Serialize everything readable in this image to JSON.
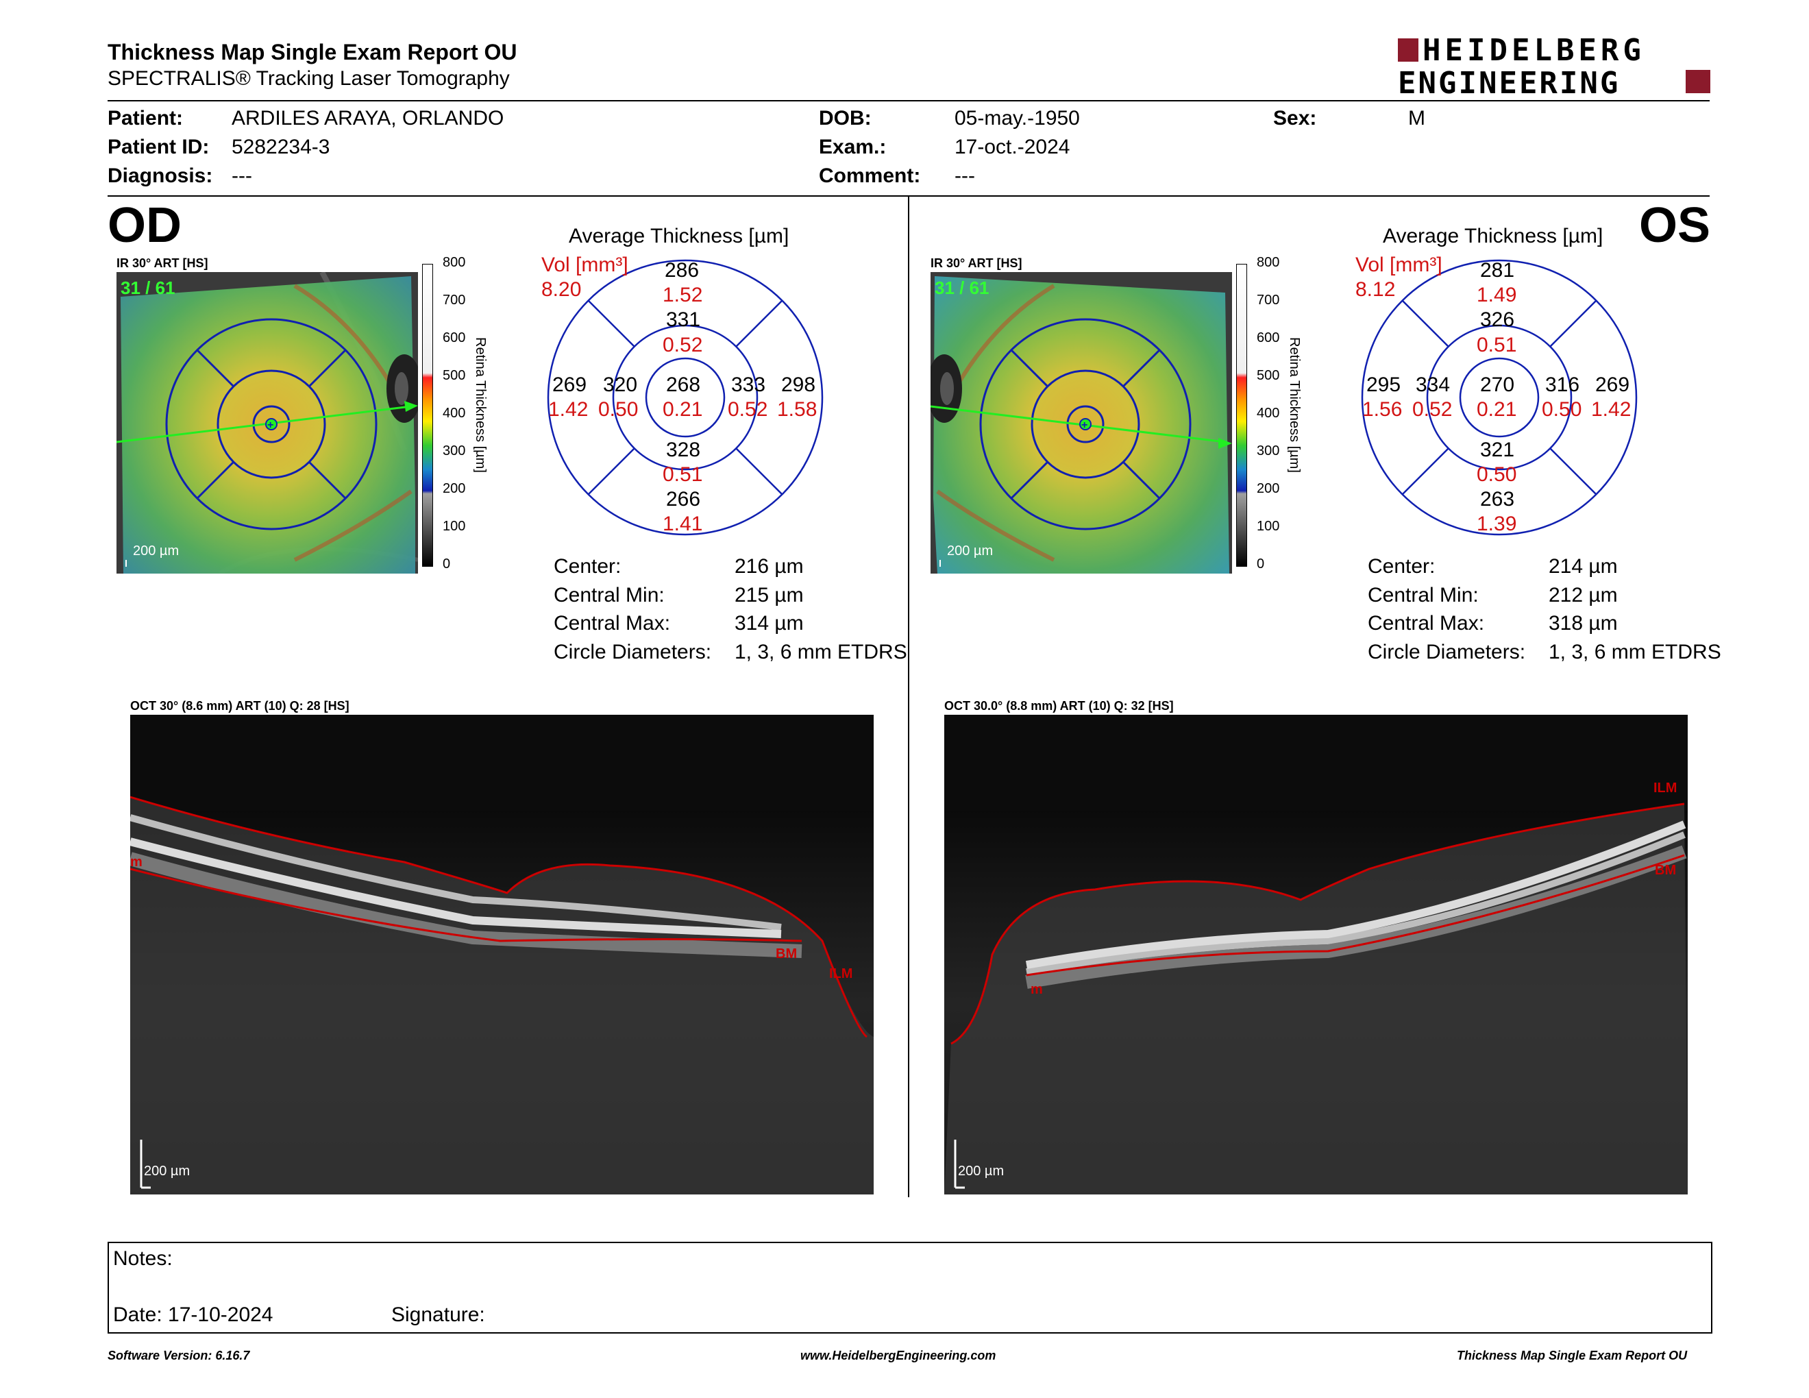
{
  "header": {
    "title": "Thickness Map Single Exam Report OU",
    "subtitle": "SPECTRALIS® Tracking Laser Tomography",
    "logo_line1": "HEIDELBERG",
    "logo_line2": "ENGINEERING",
    "logo_color": "#8b1a2b"
  },
  "patient": {
    "patient_label": "Patient:",
    "patient_value": "ARDILES ARAYA, ORLANDO",
    "id_label": "Patient ID:",
    "id_value": "5282234-3",
    "diag_label": "Diagnosis:",
    "diag_value": "---",
    "dob_label": "DOB:",
    "dob_value": "05-may.-1950",
    "exam_label": "Exam.:",
    "exam_value": "17-oct.-2024",
    "comment_label": "Comment:",
    "comment_value": "---",
    "sex_label": "Sex:",
    "sex_value": "M"
  },
  "od": {
    "eye_label": "OD",
    "ir_label": "IR 30° ART [HS]",
    "frame_counter": "31 / 61",
    "scale_label": "200 µm",
    "colorbar_ticks": [
      "800",
      "700",
      "600",
      "500",
      "400",
      "300",
      "200",
      "100",
      "0"
    ],
    "colorbar_title": "Retina  Thickness [µm]",
    "avg_title": "Average Thickness [µm]",
    "vol_label": "Vol [mm³]",
    "vol_value": "8.20",
    "etdrs": {
      "sup_outer": "286",
      "sup_outer_vol": "1.52",
      "sup_inner": "331",
      "sup_inner_vol": "0.52",
      "temp_outer": "269",
      "temp_outer_vol": "1.42",
      "temp_inner": "320",
      "temp_inner_vol": "0.50",
      "center": "268",
      "center_vol": "0.21",
      "nas_inner": "333",
      "nas_inner_vol": "0.52",
      "nas_outer": "298",
      "nas_outer_vol": "1.58",
      "inf_inner": "328",
      "inf_inner_vol": "0.51",
      "inf_outer": "266",
      "inf_outer_vol": "1.41"
    },
    "stats": {
      "center_label": "Center:",
      "center_value": "216 µm",
      "min_label": "Central Min:",
      "min_value": "215 µm",
      "max_label": "Central Max:",
      "max_value": "314 µm",
      "diam_label": "Circle Diameters:",
      "diam_value": "1, 3, 6 mm ETDRS"
    },
    "oct_label": "OCT 30° (8.6 mm) ART (10) Q: 28 [HS]",
    "oct_scale": "200 µm",
    "layer_ilm": "ILM",
    "layer_bm": "BM",
    "layer_edge": "m"
  },
  "os": {
    "eye_label": "OS",
    "ir_label": "IR 30° ART [HS]",
    "frame_counter": "31 / 61",
    "scale_label": "200 µm",
    "colorbar_ticks": [
      "800",
      "700",
      "600",
      "500",
      "400",
      "300",
      "200",
      "100",
      "0"
    ],
    "colorbar_title": "Retina  Thickness [µm]",
    "avg_title": "Average Thickness [µm]",
    "vol_label": "Vol [mm³]",
    "vol_value": "8.12",
    "etdrs": {
      "sup_outer": "281",
      "sup_outer_vol": "1.49",
      "sup_inner": "326",
      "sup_inner_vol": "0.51",
      "temp_outer": "295",
      "temp_outer_vol": "1.56",
      "temp_inner": "334",
      "temp_inner_vol": "0.52",
      "center": "270",
      "center_vol": "0.21",
      "nas_inner": "316",
      "nas_inner_vol": "0.50",
      "nas_outer": "269",
      "nas_outer_vol": "1.42",
      "inf_inner": "321",
      "inf_inner_vol": "0.50",
      "inf_outer": "263",
      "inf_outer_vol": "1.39"
    },
    "stats": {
      "center_label": "Center:",
      "center_value": "214 µm",
      "min_label": "Central Min:",
      "min_value": "212 µm",
      "max_label": "Central Max:",
      "max_value": "318 µm",
      "diam_label": "Circle Diameters:",
      "diam_value": "1, 3, 6 mm ETDRS"
    },
    "oct_label": "OCT 30.0° (8.8 mm) ART (10) Q: 32 [HS]",
    "oct_scale": "200 µm",
    "layer_ilm": "ILM",
    "layer_bm": "BM",
    "layer_edge": "m"
  },
  "notes": {
    "notes_label": "Notes:",
    "date_label": "Date: 17-10-2024",
    "signature_label": "Signature:"
  },
  "footer": {
    "software": "Software Version: 6.16.7",
    "website": "www.HeidelbergEngineering.com",
    "report_name": "Thickness Map Single Exam Report OU"
  },
  "colors": {
    "grid_blue": "#1020b0",
    "value_red": "#d21414",
    "layer_red": "#cc0000",
    "scan_green": "#22ee22"
  }
}
